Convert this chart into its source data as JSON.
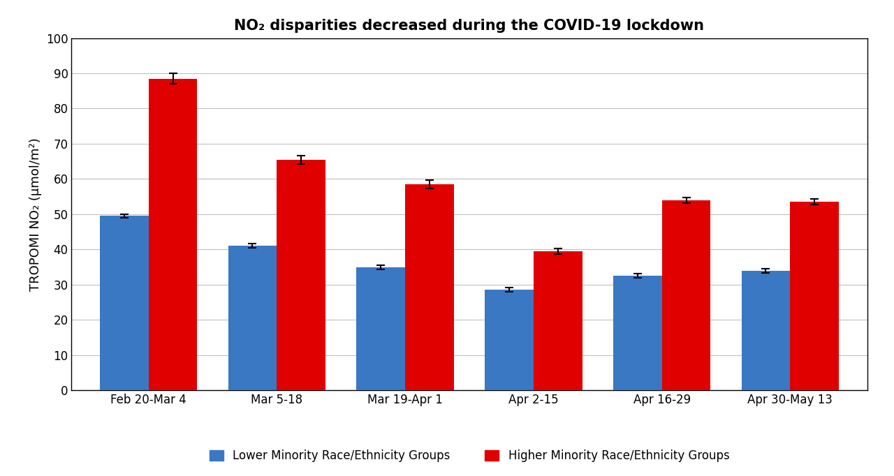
{
  "title": "NO₂ disparities decreased during the COVID-19 lockdown",
  "ylabel": "TROPOMI NO₂ (μmol/m²)",
  "categories": [
    "Feb 20-Mar 4",
    "Mar 5-18",
    "Mar 19-Apr 1",
    "Apr 2-15",
    "Apr 16-29",
    "Apr 30-May 13"
  ],
  "lower_values": [
    49.5,
    41.0,
    35.0,
    28.5,
    32.5,
    34.0
  ],
  "higher_values": [
    88.5,
    65.5,
    58.5,
    39.5,
    54.0,
    53.5
  ],
  "lower_errors": [
    0.5,
    0.6,
    0.6,
    0.6,
    0.6,
    0.6
  ],
  "higher_errors": [
    1.5,
    1.2,
    1.2,
    0.8,
    0.8,
    0.8
  ],
  "lower_color": "#3B78C3",
  "higher_color": "#E00000",
  "bar_width": 0.38,
  "ylim": [
    0,
    100
  ],
  "yticks": [
    0,
    10,
    20,
    30,
    40,
    50,
    60,
    70,
    80,
    90,
    100
  ],
  "lower_label": "Lower Minority Race/Ethnicity Groups",
  "higher_label": "Higher Minority Race/Ethnicity Groups",
  "title_fontsize": 15,
  "axis_label_fontsize": 13,
  "tick_fontsize": 12,
  "legend_fontsize": 12,
  "background_color": "#FFFFFF",
  "grid_color": "#C0C0C0",
  "error_color": "#000000",
  "spine_color": "#000000"
}
